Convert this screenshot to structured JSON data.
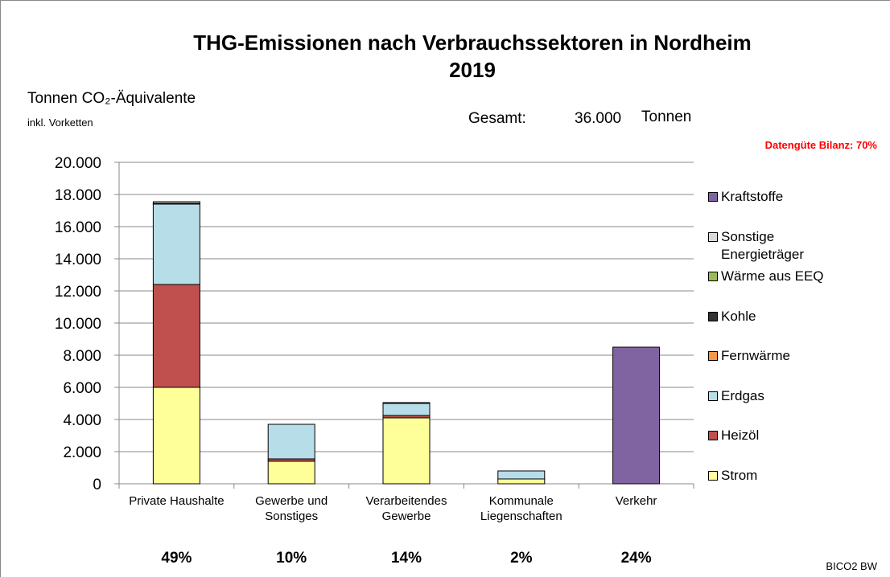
{
  "chart_data": {
    "type": "stacked_bar",
    "title": "THG-Emissionen nach Verbrauchssektoren in Nordheim",
    "subtitle": "2019",
    "y_label": "Tonnen CO₂-Äquivalente",
    "y_label_note": "inkl. Vorketten",
    "total_label": "Gesamt:",
    "total": {
      "value": 36000,
      "label": "36.000"
    },
    "total_unit": "Tonnen",
    "quality_note": "Datengüte Bilanz: 70%",
    "source": "BICO2 BW",
    "categories": [
      "Private Haushalte",
      "Gewerbe und\nSonstiges",
      "Verarbeitendes\nGewerbe",
      "Kommunale\nLiegenschaften",
      "Verkehr"
    ],
    "shares": {
      "values": [
        49,
        10,
        14,
        2,
        24
      ],
      "value_labels": [
        "49%",
        "10%",
        "14%",
        "2%",
        "24%"
      ]
    },
    "series": [
      {
        "name": "Strom",
        "color": "#ffff99",
        "values": [
          6000,
          1400,
          4100,
          300,
          0
        ]
      },
      {
        "name": "Heizöl",
        "color": "#c0504d",
        "values": [
          6400,
          150,
          150,
          0,
          0
        ]
      },
      {
        "name": "Erdgas",
        "color": "#b7dde8",
        "values": [
          5000,
          2150,
          750,
          500,
          0
        ]
      },
      {
        "name": "Fernwärme",
        "color": "#f79646",
        "values": [
          0,
          0,
          0,
          0,
          0
        ]
      },
      {
        "name": "Kohle",
        "color": "#333333",
        "values": [
          0,
          0,
          50,
          0,
          0
        ]
      },
      {
        "name": "Wärme aus EEQ",
        "color": "#9bbb59",
        "values": [
          50,
          0,
          0,
          0,
          0
        ]
      },
      {
        "name": "Sonstige\nEnergieträger",
        "color": "#d9d9d9",
        "values": [
          100,
          0,
          0,
          0,
          0
        ]
      },
      {
        "name": "Kraftstoffe",
        "color": "#8064a2",
        "values": [
          0,
          0,
          0,
          0,
          8500
        ]
      }
    ],
    "ylim": [
      0,
      20000
    ],
    "yticks": [
      0,
      {
        "value": 2000,
        "label": "2.000"
      },
      {
        "value": 4000,
        "label": "4.000"
      },
      {
        "value": 6000,
        "label": "6.000"
      },
      {
        "value": 8000,
        "label": "8.000"
      },
      {
        "value": 10000,
        "label": "10.000"
      },
      {
        "value": 12000,
        "label": "12.000"
      },
      {
        "value": 14000,
        "label": "14.000"
      },
      {
        "value": 16000,
        "label": "16.000"
      },
      {
        "value": 18000,
        "label": "18.000"
      },
      {
        "value": 20000,
        "label": "20.000"
      }
    ],
    "grid": true
  }
}
